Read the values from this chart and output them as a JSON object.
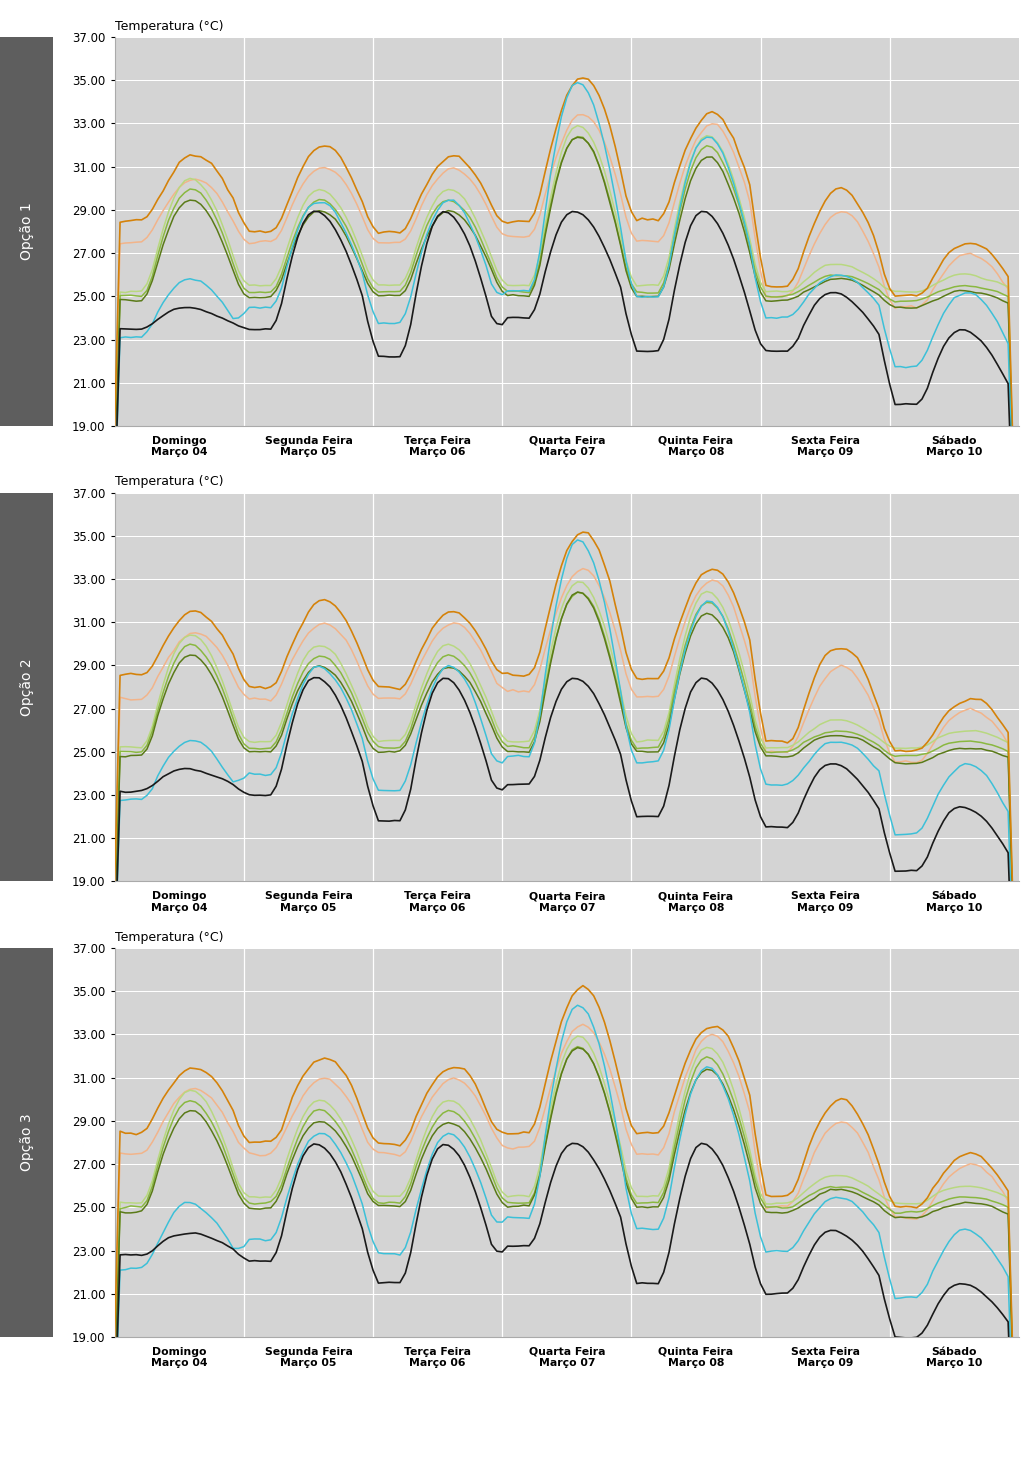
{
  "y_label": "Temperatura (°C)",
  "ylim": [
    19.0,
    37.0
  ],
  "yticks": [
    19.0,
    21.0,
    23.0,
    25.0,
    27.0,
    29.0,
    31.0,
    33.0,
    35.0,
    37.0
  ],
  "day_labels": [
    [
      "Domingo",
      "Março 04"
    ],
    [
      "Segunda Feira",
      "Março 05"
    ],
    [
      "Terça Feira",
      "Março 06"
    ],
    [
      "Quarta Feira",
      "Março 07"
    ],
    [
      "Quinta Feira",
      "Março 08"
    ],
    [
      "Sexta Feira",
      "Março 09"
    ],
    [
      "Sábado",
      "Março 10"
    ]
  ],
  "option_labels": [
    "Opção 1",
    "Opção 2",
    "Opção 3"
  ],
  "colors": {
    "black": "#1a1a1a",
    "cyan": "#3cc0d8",
    "orange_dark": "#d4820a",
    "orange_light": "#f2b48a",
    "green_dark": "#5a7a18",
    "green_medium": "#8ab840",
    "green_light": "#b8d880"
  },
  "bg_color": "#d4d4d4",
  "sidebar_color": "#5e5e5e",
  "hours_per_day": 24,
  "n_days": 7,
  "fig_width": 10.24,
  "fig_height": 14.79,
  "dpi": 100
}
